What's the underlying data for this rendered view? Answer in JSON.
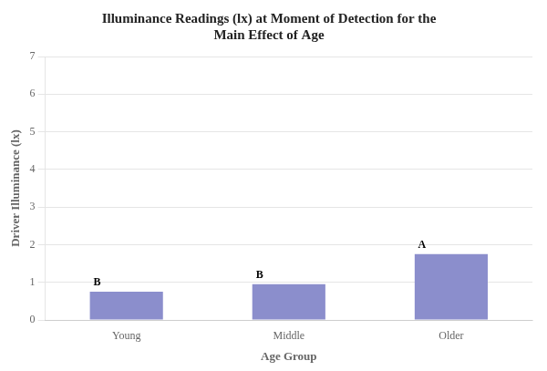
{
  "chart_data": {
    "type": "bar",
    "title": "Illuminance Readings (lx) at Moment of Detection for the\nMain Effect of Age",
    "xlabel": "Age Group",
    "ylabel": "Driver Illuminance (lx)",
    "categories": [
      "Young",
      "Middle",
      "Older"
    ],
    "values": [
      0.75,
      0.95,
      1.75
    ],
    "color": "#8b8ecc",
    "annotations": [
      {
        "category": "Young",
        "text": "B"
      },
      {
        "category": "Middle",
        "text": "B"
      },
      {
        "category": "Older",
        "text": "A"
      }
    ],
    "ylim": [
      0,
      7
    ],
    "yticks": [
      0,
      1,
      2,
      3,
      4,
      5,
      6,
      7
    ],
    "grid": true
  }
}
